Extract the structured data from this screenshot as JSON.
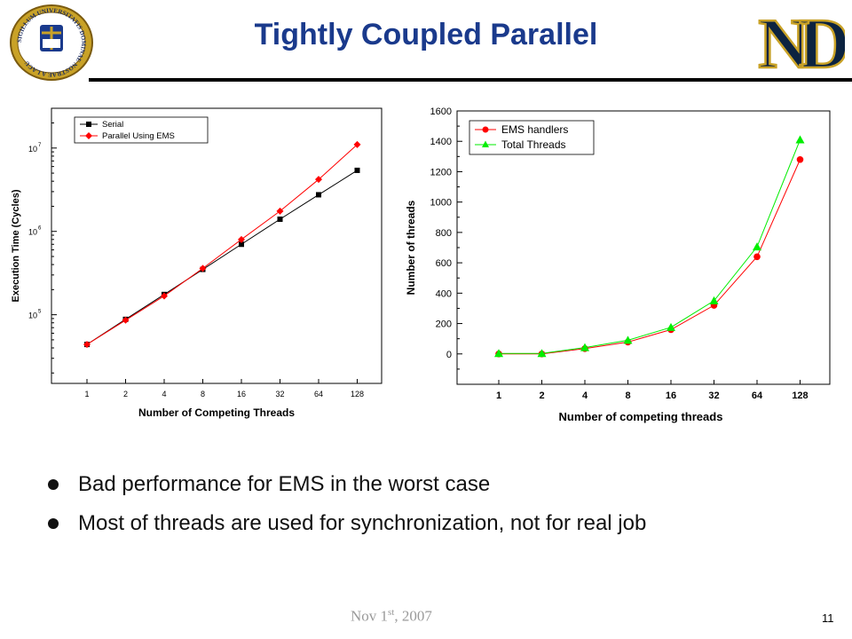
{
  "slide": {
    "title": "Tightly Coupled Parallel",
    "bullets": [
      "Bad performance for EMS in the worst case",
      "Most of threads are used for synchronization, not for real job"
    ],
    "footer": {
      "date_main": "Nov 1",
      "date_sup": "st",
      "date_year": ", 2007",
      "page": "11"
    },
    "seal_text": "SIGILLUM UNIVERSITATIS DOMINAE NOSTRAE A LACU",
    "logo_text": "ND",
    "colors": {
      "title": "#1a3a8c",
      "gold": "#c9a227",
      "navy": "#0c2340"
    }
  },
  "chart_data": [
    {
      "type": "line",
      "title": "",
      "xlabel": "Number of Competing Threads",
      "ylabel": "Execution Time (Cycles)",
      "yscale": "log",
      "ylim": [
        15000,
        30000000
      ],
      "categories": [
        "1",
        "2",
        "4",
        "8",
        "16",
        "32",
        "64",
        "128"
      ],
      "y_tick_labels": [
        {
          "value": 100000,
          "base": "10",
          "exp": "5"
        },
        {
          "value": 1000000,
          "base": "10",
          "exp": "6"
        },
        {
          "value": 10000000,
          "base": "10",
          "exp": "7"
        }
      ],
      "legend_position": "top-left",
      "series": [
        {
          "name": "Serial",
          "color": "#000000",
          "marker": "square",
          "values": [
            44000,
            88000,
            175000,
            350000,
            700000,
            1400000,
            2750000,
            5400000
          ]
        },
        {
          "name": "Parallel Using EMS",
          "color": "#ff0000",
          "marker": "diamond",
          "values": [
            44000,
            86000,
            168000,
            360000,
            800000,
            1750000,
            4200000,
            11000000
          ]
        }
      ]
    },
    {
      "type": "line",
      "title": "",
      "xlabel": "Number of competing threads",
      "ylabel": "Number of threads",
      "ylim": [
        -200,
        1600
      ],
      "yticks": [
        0,
        200,
        400,
        600,
        800,
        1000,
        1200,
        1400,
        1600
      ],
      "categories": [
        "1",
        "2",
        "4",
        "8",
        "16",
        "32",
        "64",
        "128"
      ],
      "legend_position": "top-left",
      "series": [
        {
          "name": "EMS handlers",
          "color": "#ff0000",
          "marker": "circle",
          "values": [
            0,
            0,
            35,
            78,
            160,
            320,
            640,
            1280
          ]
        },
        {
          "name": "Total Threads",
          "color": "#00ee00",
          "marker": "triangle",
          "values": [
            3,
            3,
            42,
            90,
            175,
            350,
            705,
            1410
          ]
        }
      ]
    }
  ]
}
